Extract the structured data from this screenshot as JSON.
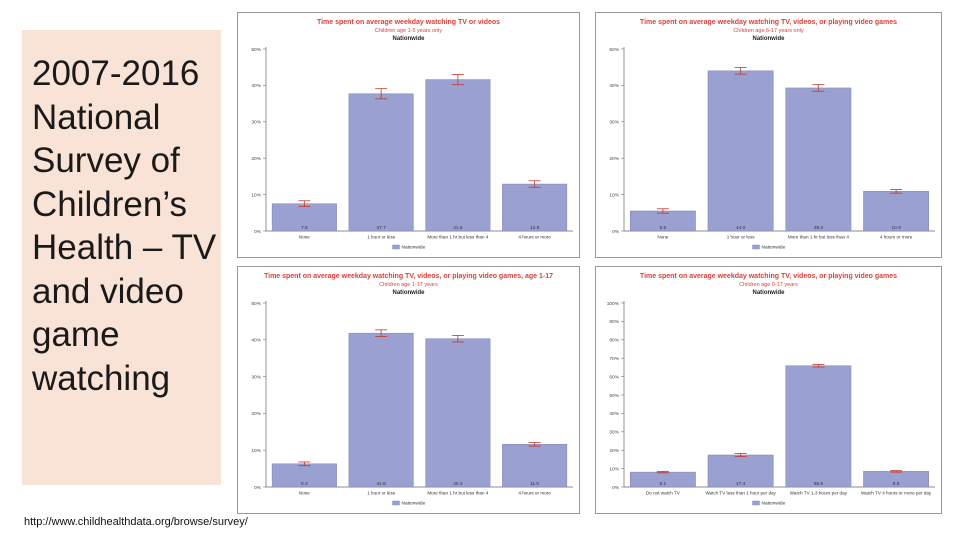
{
  "slide": {
    "title": "2007-2016 National Survey of Children’s Health – TV and video game watching",
    "source": "http://www.childhealthdata.org/browse/survey/"
  },
  "colors": {
    "bar": "#9aa0d0",
    "bar_edge": "#7c82b8",
    "error": "#c0392b",
    "title": "#d9403a",
    "panel": "#f9e2d6"
  },
  "chart_data": [
    {
      "type": "bar",
      "title": "Time spent on average weekday watching TV or videos",
      "subtitle": "Children age 1-5 years only",
      "group": "Nationwide",
      "categories": [
        "None",
        "1 hour or less",
        "More than 1 hr but less than 4",
        "4 hours or more"
      ],
      "values": [
        7.5,
        37.7,
        41.6,
        12.9
      ],
      "value_labels": [
        "7.5",
        "37.7",
        "41.6",
        "12.9"
      ],
      "error": [
        0.8,
        1.4,
        1.4,
        0.9
      ],
      "yticks": [
        "0%",
        "10%",
        "20%",
        "30%",
        "40%",
        "50%"
      ],
      "ylim": [
        0,
        50
      ],
      "legend": "Nationwide"
    },
    {
      "type": "bar",
      "title": "Time spent on average weekday watching TV, videos, or playing video games",
      "subtitle": "Children age 6-17 years only",
      "group": "Nationwide",
      "categories": [
        "None",
        "1 hour or less",
        "More than 1 hr but less than 4",
        "4 hours or more"
      ],
      "values": [
        5.5,
        44.0,
        39.3,
        10.9
      ],
      "value_labels": [
        "5.5",
        "44.0",
        "39.3",
        "10.9"
      ],
      "error": [
        0.6,
        0.9,
        0.9,
        0.5
      ],
      "yticks": [
        "0%",
        "10%",
        "20%",
        "30%",
        "40%",
        "50%"
      ],
      "ylim": [
        0,
        50
      ],
      "legend": "Nationwide"
    },
    {
      "type": "bar",
      "title": "Time spent on average weekday watching TV, videos, or playing video games, age 1-17",
      "subtitle": "Children age 1-17 years",
      "group": "Nationwide",
      "categories": [
        "None",
        "1 hour or less",
        "More than 1 hr but less than 4",
        "4 hours or more"
      ],
      "values": [
        6.3,
        41.8,
        40.3,
        11.6
      ],
      "value_labels": [
        "6.3",
        "41.8",
        "40.3",
        "11.6"
      ],
      "error": [
        0.5,
        0.9,
        0.9,
        0.5
      ],
      "yticks": [
        "0%",
        "10%",
        "20%",
        "30%",
        "40%",
        "50%"
      ],
      "ylim": [
        0,
        50
      ],
      "legend": "Nationwide"
    },
    {
      "type": "bar",
      "title": "Time spent on average weekday watching TV, videos, or playing video games",
      "subtitle": "Children age 0-17 years",
      "group": "Nationwide",
      "categories": [
        "Do not watch TV",
        "Watch TV less than 1 hour per day",
        "Watch TV 1-3 hours per day",
        "Watch TV 4 hours or more per day"
      ],
      "values": [
        8.1,
        17.4,
        65.9,
        8.5
      ],
      "value_labels": [
        "8.1",
        "17.4",
        "65.9",
        "8.5"
      ],
      "error": [
        0.4,
        0.8,
        0.7,
        0.4
      ],
      "yticks": [
        "0%",
        "10%",
        "20%",
        "30%",
        "40%",
        "50%",
        "60%",
        "70%",
        "80%",
        "90%",
        "100%"
      ],
      "ylim": [
        0,
        100
      ],
      "legend": "Nationwide"
    }
  ]
}
